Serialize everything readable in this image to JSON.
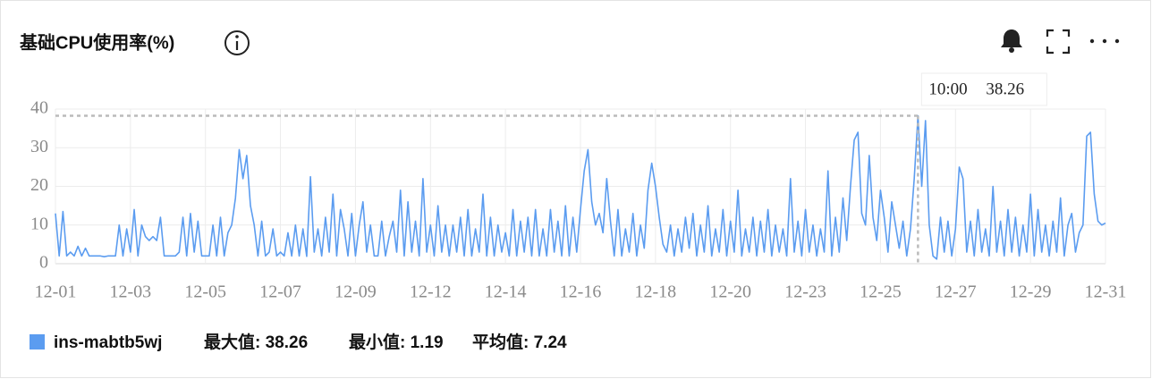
{
  "title": "基础CPU使用率(%)",
  "chart_data": {
    "type": "line",
    "categories": [
      "12-01",
      null,
      null,
      null,
      null,
      null,
      null,
      null,
      null,
      null,
      null,
      null,
      null,
      null,
      null,
      null,
      null,
      null,
      null,
      null,
      "12-03",
      null,
      null,
      null,
      null,
      null,
      null,
      null,
      null,
      null,
      null,
      null,
      null,
      null,
      null,
      null,
      null,
      null,
      null,
      null,
      "12-05",
      null,
      null,
      null,
      null,
      null,
      null,
      null,
      null,
      null,
      null,
      null,
      null,
      null,
      null,
      null,
      null,
      null,
      null,
      null,
      "12-07",
      null,
      null,
      null,
      null,
      null,
      null,
      null,
      null,
      null,
      null,
      null,
      null,
      null,
      null,
      null,
      null,
      null,
      null,
      null,
      "12-09",
      null,
      null,
      null,
      null,
      null,
      null,
      null,
      null,
      null,
      null,
      null,
      null,
      null,
      null,
      null,
      null,
      null,
      null,
      null,
      "12-12",
      null,
      null,
      null,
      null,
      null,
      null,
      null,
      null,
      null,
      null,
      null,
      null,
      null,
      null,
      null,
      null,
      null,
      null,
      null,
      "12-14",
      null,
      null,
      null,
      null,
      null,
      null,
      null,
      null,
      null,
      null,
      null,
      null,
      null,
      null,
      null,
      null,
      null,
      null,
      null,
      "12-16",
      null,
      null,
      null,
      null,
      null,
      null,
      null,
      null,
      null,
      null,
      null,
      null,
      null,
      null,
      null,
      null,
      null,
      null,
      null,
      "12-18",
      null,
      null,
      null,
      null,
      null,
      null,
      null,
      null,
      null,
      null,
      null,
      null,
      null,
      null,
      null,
      null,
      null,
      null,
      null,
      "12-20",
      null,
      null,
      null,
      null,
      null,
      null,
      null,
      null,
      null,
      null,
      null,
      null,
      null,
      null,
      null,
      null,
      null,
      null,
      null,
      "12-23",
      null,
      null,
      null,
      null,
      null,
      null,
      null,
      null,
      null,
      null,
      null,
      null,
      null,
      null,
      null,
      null,
      null,
      null,
      null,
      "12-25",
      null,
      null,
      null,
      null,
      null,
      null,
      null,
      null,
      null,
      null,
      null,
      null,
      null,
      null,
      null,
      null,
      null,
      null,
      null,
      "12-27",
      null,
      null,
      null,
      null,
      null,
      null,
      null,
      null,
      null,
      null,
      null,
      null,
      null,
      null,
      null,
      null,
      null,
      null,
      null,
      "12-29",
      null,
      null,
      null,
      null,
      null,
      null,
      null,
      null,
      null,
      null,
      null,
      null,
      null,
      null,
      null,
      null,
      null,
      null,
      null,
      "12-31"
    ],
    "series": [
      {
        "name": "ins-mabtb5wj",
        "color": "#5b9cf0",
        "values": [
          13,
          2,
          13.5,
          2,
          3,
          2,
          4.5,
          2,
          4,
          2,
          2,
          2,
          2,
          1.8,
          2,
          2,
          2,
          10,
          2,
          9,
          3,
          14,
          2,
          10,
          7,
          6,
          7,
          6,
          12,
          2,
          2,
          2,
          2,
          3,
          12,
          2,
          13,
          3,
          11,
          2,
          2,
          2,
          10,
          2,
          12,
          2,
          8,
          10,
          17,
          29.5,
          22,
          28,
          15,
          10,
          2,
          11,
          2,
          3,
          9,
          2,
          3,
          2,
          8,
          2,
          10,
          2,
          9,
          1.9,
          22.5,
          3,
          9,
          2,
          12,
          3,
          18,
          2,
          14,
          9,
          2,
          13,
          2,
          10,
          16,
          3,
          10,
          2,
          2,
          11,
          2,
          7,
          11,
          3,
          19,
          2,
          16,
          3,
          11,
          2,
          22,
          3,
          10,
          2,
          15,
          3,
          10,
          2,
          10,
          3,
          12,
          2,
          14,
          2,
          9,
          3,
          18,
          2,
          12,
          2,
          10,
          3,
          8,
          2,
          14,
          2,
          11,
          3,
          12,
          2,
          14,
          2,
          9,
          2,
          14,
          3,
          11,
          2,
          15,
          2,
          12,
          3,
          14,
          24,
          29.5,
          16,
          10,
          13,
          8,
          22,
          11,
          2,
          14,
          2,
          9,
          3,
          13,
          2,
          10,
          4,
          19,
          26,
          20,
          12,
          5,
          3,
          10,
          2,
          9,
          3,
          12,
          4,
          13,
          2,
          10,
          3,
          15,
          2,
          9,
          3,
          14,
          2,
          11,
          3,
          19,
          2,
          9,
          3,
          12,
          2,
          11,
          3,
          14,
          2,
          10,
          3,
          9,
          2,
          22,
          3,
          11,
          2,
          14,
          3,
          10,
          2,
          9,
          3,
          24,
          2,
          12,
          3,
          17,
          6,
          20,
          32,
          34,
          13,
          10,
          28,
          12,
          6,
          19,
          12,
          3,
          16,
          10,
          4,
          11,
          2,
          9,
          22,
          38.26,
          20,
          37,
          10,
          2,
          1.19,
          12,
          3,
          11,
          2,
          9,
          25,
          22,
          3,
          11,
          2,
          14,
          3,
          9,
          2,
          20,
          3,
          11,
          2,
          14,
          3,
          12,
          2,
          10,
          3,
          18,
          2,
          14,
          3,
          10,
          2,
          11,
          3,
          17,
          2,
          10,
          13,
          3,
          8,
          10,
          33,
          34,
          18,
          11,
          10,
          10.5
        ]
      }
    ],
    "ylim": [
      0,
      40
    ],
    "yticks": [
      0,
      10,
      20,
      30,
      40
    ],
    "grid": true,
    "tooltip": {
      "time": "10:00",
      "value": 38.26
    },
    "legend_stats": [
      "最大值: 38.26",
      "最小值: 1.19",
      "平均值: 7.24"
    ]
  }
}
